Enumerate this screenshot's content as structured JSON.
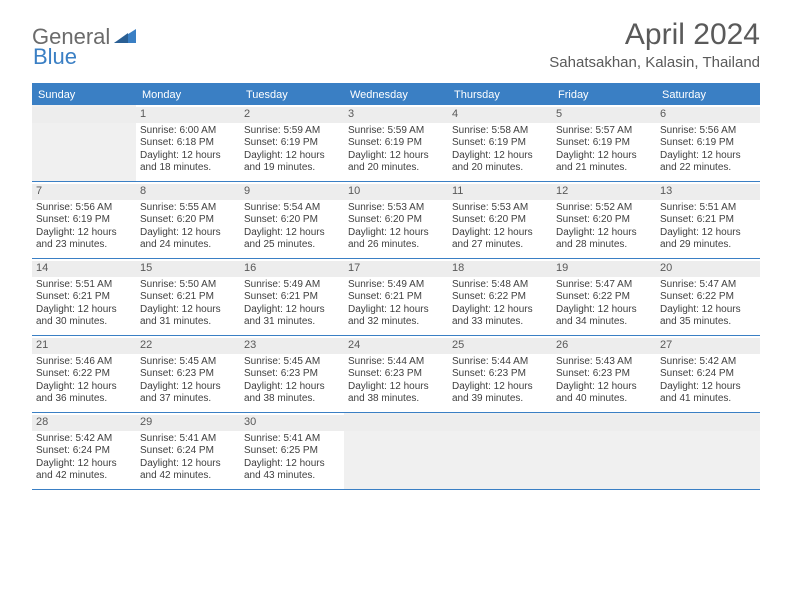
{
  "logo": {
    "part1": "General",
    "part2": "Blue"
  },
  "title": "April 2024",
  "location": "Sahatsakhan, Kalasin, Thailand",
  "colors": {
    "brand_blue": "#3a7fc4",
    "header_bg": "#3a7fc4",
    "header_text": "#ffffff",
    "daynum_bg": "#ededed",
    "empty_bg": "#f0f0f0",
    "border": "#3a7fc4",
    "text": "#404040",
    "logo_gray": "#6b6b6b"
  },
  "day_names": [
    "Sunday",
    "Monday",
    "Tuesday",
    "Wednesday",
    "Thursday",
    "Friday",
    "Saturday"
  ],
  "weeks": [
    [
      null,
      {
        "n": "1",
        "sunrise": "6:00 AM",
        "sunset": "6:18 PM",
        "daylight": "12 hours and 18 minutes."
      },
      {
        "n": "2",
        "sunrise": "5:59 AM",
        "sunset": "6:19 PM",
        "daylight": "12 hours and 19 minutes."
      },
      {
        "n": "3",
        "sunrise": "5:59 AM",
        "sunset": "6:19 PM",
        "daylight": "12 hours and 20 minutes."
      },
      {
        "n": "4",
        "sunrise": "5:58 AM",
        "sunset": "6:19 PM",
        "daylight": "12 hours and 20 minutes."
      },
      {
        "n": "5",
        "sunrise": "5:57 AM",
        "sunset": "6:19 PM",
        "daylight": "12 hours and 21 minutes."
      },
      {
        "n": "6",
        "sunrise": "5:56 AM",
        "sunset": "6:19 PM",
        "daylight": "12 hours and 22 minutes."
      }
    ],
    [
      {
        "n": "7",
        "sunrise": "5:56 AM",
        "sunset": "6:19 PM",
        "daylight": "12 hours and 23 minutes."
      },
      {
        "n": "8",
        "sunrise": "5:55 AM",
        "sunset": "6:20 PM",
        "daylight": "12 hours and 24 minutes."
      },
      {
        "n": "9",
        "sunrise": "5:54 AM",
        "sunset": "6:20 PM",
        "daylight": "12 hours and 25 minutes."
      },
      {
        "n": "10",
        "sunrise": "5:53 AM",
        "sunset": "6:20 PM",
        "daylight": "12 hours and 26 minutes."
      },
      {
        "n": "11",
        "sunrise": "5:53 AM",
        "sunset": "6:20 PM",
        "daylight": "12 hours and 27 minutes."
      },
      {
        "n": "12",
        "sunrise": "5:52 AM",
        "sunset": "6:20 PM",
        "daylight": "12 hours and 28 minutes."
      },
      {
        "n": "13",
        "sunrise": "5:51 AM",
        "sunset": "6:21 PM",
        "daylight": "12 hours and 29 minutes."
      }
    ],
    [
      {
        "n": "14",
        "sunrise": "5:51 AM",
        "sunset": "6:21 PM",
        "daylight": "12 hours and 30 minutes."
      },
      {
        "n": "15",
        "sunrise": "5:50 AM",
        "sunset": "6:21 PM",
        "daylight": "12 hours and 31 minutes."
      },
      {
        "n": "16",
        "sunrise": "5:49 AM",
        "sunset": "6:21 PM",
        "daylight": "12 hours and 31 minutes."
      },
      {
        "n": "17",
        "sunrise": "5:49 AM",
        "sunset": "6:21 PM",
        "daylight": "12 hours and 32 minutes."
      },
      {
        "n": "18",
        "sunrise": "5:48 AM",
        "sunset": "6:22 PM",
        "daylight": "12 hours and 33 minutes."
      },
      {
        "n": "19",
        "sunrise": "5:47 AM",
        "sunset": "6:22 PM",
        "daylight": "12 hours and 34 minutes."
      },
      {
        "n": "20",
        "sunrise": "5:47 AM",
        "sunset": "6:22 PM",
        "daylight": "12 hours and 35 minutes."
      }
    ],
    [
      {
        "n": "21",
        "sunrise": "5:46 AM",
        "sunset": "6:22 PM",
        "daylight": "12 hours and 36 minutes."
      },
      {
        "n": "22",
        "sunrise": "5:45 AM",
        "sunset": "6:23 PM",
        "daylight": "12 hours and 37 minutes."
      },
      {
        "n": "23",
        "sunrise": "5:45 AM",
        "sunset": "6:23 PM",
        "daylight": "12 hours and 38 minutes."
      },
      {
        "n": "24",
        "sunrise": "5:44 AM",
        "sunset": "6:23 PM",
        "daylight": "12 hours and 38 minutes."
      },
      {
        "n": "25",
        "sunrise": "5:44 AM",
        "sunset": "6:23 PM",
        "daylight": "12 hours and 39 minutes."
      },
      {
        "n": "26",
        "sunrise": "5:43 AM",
        "sunset": "6:23 PM",
        "daylight": "12 hours and 40 minutes."
      },
      {
        "n": "27",
        "sunrise": "5:42 AM",
        "sunset": "6:24 PM",
        "daylight": "12 hours and 41 minutes."
      }
    ],
    [
      {
        "n": "28",
        "sunrise": "5:42 AM",
        "sunset": "6:24 PM",
        "daylight": "12 hours and 42 minutes."
      },
      {
        "n": "29",
        "sunrise": "5:41 AM",
        "sunset": "6:24 PM",
        "daylight": "12 hours and 42 minutes."
      },
      {
        "n": "30",
        "sunrise": "5:41 AM",
        "sunset": "6:25 PM",
        "daylight": "12 hours and 43 minutes."
      },
      null,
      null,
      null,
      null
    ]
  ],
  "labels": {
    "sunrise": "Sunrise:",
    "sunset": "Sunset:",
    "daylight": "Daylight:"
  }
}
